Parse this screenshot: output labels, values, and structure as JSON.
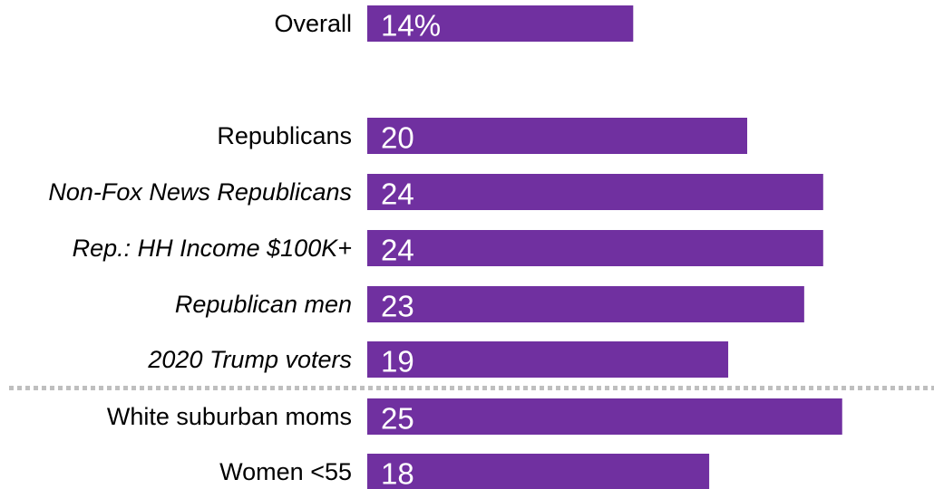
{
  "chart_data": {
    "type": "bar",
    "orientation": "horizontal",
    "title": "",
    "xlabel": "",
    "ylabel": "",
    "grid": false,
    "legend": "none",
    "bar_color": "#7030a0",
    "separator_color": "#bfbfbf",
    "xlim": [
      0,
      25
    ],
    "categories": [
      "Overall",
      "Republicans",
      "Non-Fox News Republicans",
      "Rep.: HH Income $100K+",
      "Republican men",
      "2020 Trump voters",
      "White suburban moms",
      "Women <55"
    ],
    "italic": [
      false,
      false,
      true,
      true,
      true,
      true,
      false,
      false
    ],
    "values": [
      14,
      20,
      24,
      24,
      23,
      19,
      25,
      18
    ],
    "data_labels": [
      "14%",
      "20",
      "24",
      "24",
      "23",
      "19",
      "25",
      "18"
    ],
    "separator_after": "2020 Trump voters"
  }
}
